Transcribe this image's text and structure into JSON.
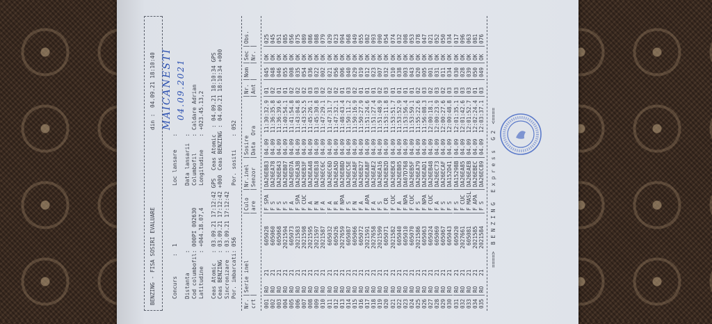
{
  "header": {
    "title": "BENZING - FISA SOSIRI EVALUARE",
    "din_label": "din :",
    "din_value": "04.09.21 18:10:40"
  },
  "info": {
    "concurs_label": "Concurs      :",
    "concurs_value": "1",
    "loc_label": "Loc lansare    :",
    "loc_value_handwritten": "MAICANESTI",
    "distanta_label": "Distanta      :",
    "data_lansarii_label": "Data lansarii  :",
    "data_lansarii_handwritten": "04.09.2021",
    "cod_label": "Cod columbofil:",
    "cod_value": "000PI 002630",
    "columbofil_label": "Columbofil     :",
    "columbofil_value": "Caldare Adrian",
    "latitudine_label": "Latitudine    :",
    "latitudine_value": "+044.18.07,4",
    "longitudine_label": "Longitudine    :",
    "longitudine_value": "+023.45.13,2",
    "ceas_atomic_label": "Ceas Atomic   :",
    "ceas_atomic_start": "03.09.21 17:12:42 GPS",
    "ceas_benzing_label": "Ceas BENZING  :",
    "ceas_benzing_start": "03.09.21 17:12:42 +000",
    "sincronizare_label": "Sincronizare  :",
    "sincronizare_value": "03.09.21 17:12:42",
    "imbarcati_label": "Por. imbarcati:",
    "imbarcati_value": "056",
    "ceas_atomic_end_label": "Ceas Atomic  :",
    "ceas_atomic_end": "04.09.21 18:10:34 GPS",
    "ceas_benzing_end_label": "Ceas BENZING :",
    "ceas_benzing_end": "04.09.21 18:10:34 +000",
    "sositi_label": "Por. sositi    :",
    "sositi_value": "052"
  },
  "table": {
    "headers_top": [
      "Nr.",
      "Serie inel",
      "Culo",
      "Nr.inel",
      "Sosire",
      "Nr.",
      "Nom",
      "Sec",
      "Obs."
    ],
    "headers_bottom": [
      "crt",
      "",
      "are",
      "Senzor",
      "Data  Ora",
      "Ant",
      "",
      "Nr.",
      ""
    ],
    "rows": [
      [
        "001",
        "RO",
        "21",
        "605028",
        "F",
        "SPA",
        "DA26EB83",
        "04.09",
        "11:30:32.9",
        "01",
        "045",
        "OK",
        "025"
      ],
      [
        "002",
        "RO",
        "21",
        "605060",
        "F",
        "S",
        "DA26EA78",
        "04.09",
        "11:36:35.8",
        "02",
        "048",
        "OK",
        "045"
      ],
      [
        "003",
        "RO",
        "21",
        "605068",
        "F",
        "S",
        "DA26EB43",
        "04.09",
        "11:36:39.6",
        "01",
        "046",
        "OK",
        "051"
      ],
      [
        "004",
        "RO",
        "21",
        "2021594",
        "F",
        "S",
        "DA26EB07",
        "04.09",
        "11:40:54.1",
        "01",
        "055",
        "OK",
        "085"
      ],
      [
        "005",
        "RO",
        "21",
        "605073",
        "F",
        "A",
        "DA26ED7A",
        "04.09",
        "11:41:54.8",
        "02",
        "008",
        "OK",
        "056"
      ],
      [
        "006",
        "RO",
        "21",
        "2021583",
        "F",
        "SPA",
        "DA26EA3B",
        "04.09",
        "11:43:04.8",
        "02",
        "035",
        "OK",
        "075"
      ],
      [
        "007",
        "RO",
        "21",
        "2021598",
        "F",
        "CUC",
        "DA26EB3F",
        "04.09",
        "11:43:52.5",
        "02",
        "054",
        "OK",
        "089"
      ],
      [
        "008",
        "RO",
        "21",
        "2021595",
        "F",
        "A",
        "DA26EA48",
        "04.09",
        "11:45:26.1",
        "03",
        "036",
        "OK",
        "086"
      ],
      [
        "009",
        "RO",
        "21",
        "2021597",
        "F",
        "N",
        "DA26EB18",
        "04.09",
        "11:45:30.8",
        "03",
        "022",
        "OK",
        "088"
      ],
      [
        "010",
        "RO",
        "21",
        "2021587",
        "F",
        "A",
        "DA26EC6C",
        "04.09",
        "11:47:29.1",
        "02",
        "002",
        "OK",
        "079"
      ],
      [
        "011",
        "RO",
        "21",
        "605032",
        "F",
        "A",
        "DA26EC6D",
        "04.09",
        "11:47:31.7",
        "02",
        "021",
        "OK",
        "029"
      ],
      [
        "012",
        "RO",
        "21",
        "605026",
        "F",
        "R",
        "DA26EA5D",
        "04.09",
        "11:47:32.1",
        "02",
        "056",
        "OK",
        "023"
      ],
      [
        "013",
        "RO",
        "21",
        "2027659",
        "F",
        "NPA",
        "DA26EB8D",
        "04.09",
        "11:48:43.4",
        "01",
        "006",
        "OK",
        "094"
      ],
      [
        "014",
        "RO",
        "21",
        "605087",
        "F",
        "S",
        "DA26EC5E",
        "04.09",
        "11:50:11.2",
        "03",
        "040",
        "OK",
        "068"
      ],
      [
        "015",
        "RO",
        "21",
        "605066",
        "F",
        "N",
        "DA26EA8F",
        "04.09",
        "11:50:16.9",
        "02",
        "029",
        "OK",
        "049"
      ],
      [
        "016",
        "RO",
        "21",
        "605072",
        "F",
        "A",
        "DA26EB27",
        "04.09",
        "11:50:27.9",
        "01",
        "019",
        "OK",
        "055"
      ],
      [
        "017",
        "RO",
        "21",
        "2021591",
        "F",
        "APA",
        "DA26EA8F",
        "04.09",
        "11:51:24.6",
        "01",
        "012",
        "OK",
        "082"
      ],
      [
        "018",
        "RO",
        "21",
        "2027658",
        "F",
        "A",
        "DA26EAE2",
        "04.09",
        "11:51:27.4",
        "01",
        "023",
        "OK",
        "093"
      ],
      [
        "019",
        "RO",
        "21",
        "2021599",
        "F",
        "S",
        "DA26EA16",
        "04.09",
        "11:51:48.9",
        "02",
        "007",
        "OK",
        "090"
      ],
      [
        "020",
        "RO",
        "21",
        "605071",
        "F",
        "CR",
        "DA26EB2D",
        "04.09",
        "11:53:11.8",
        "03",
        "032",
        "OK",
        "054"
      ],
      [
        "021",
        "RO",
        "21",
        "2021582",
        "F",
        "CUC",
        "DA26EBC8",
        "04.09",
        "11:53:51.7",
        "01",
        "010",
        "OK",
        "074"
      ],
      [
        "022",
        "RO",
        "21",
        "605040",
        "F",
        "A",
        "DA26EB05",
        "04.09",
        "11:53:52.9",
        "01",
        "038",
        "OK",
        "032"
      ],
      [
        "023",
        "RO",
        "21",
        "605010",
        "F",
        "NPA",
        "DA07D768",
        "04.09",
        "11:53:56.4",
        "01",
        "003",
        "OK",
        "008"
      ],
      [
        "024",
        "RO",
        "21",
        "605070",
        "F",
        "CUC",
        "DA26EB5F",
        "04.09",
        "11:53:59.1",
        "01",
        "043",
        "OK",
        "053"
      ],
      [
        "025",
        "RO",
        "21",
        "2021586",
        "F",
        "S",
        "DA26EA79",
        "04.09",
        "11:55:22.6",
        "02",
        "020",
        "OK",
        "078"
      ],
      [
        "026",
        "RO",
        "21",
        "605063",
        "F",
        "NPA",
        "DA26EAD1",
        "04.09",
        "11:56:08.3",
        "03",
        "005",
        "OK",
        "047"
      ],
      [
        "027",
        "RO",
        "21",
        "605024",
        "F",
        "CUC",
        "DA26EB48",
        "04.09",
        "12:00:18.1",
        "02",
        "001",
        "OK",
        "021"
      ],
      [
        "028",
        "RO",
        "21",
        "605069",
        "F",
        "A",
        "DA26EC73",
        "04.09",
        "12:00:23.9",
        "03",
        "031",
        "OK",
        "052"
      ],
      [
        "029",
        "RO",
        "21",
        "605067",
        "F",
        "S",
        "DA26ECAF",
        "04.09",
        "12:00:27.6",
        "02",
        "011",
        "OK",
        "050"
      ],
      [
        "030",
        "RO",
        "21",
        "605043",
        "F",
        "S",
        "DA152D41",
        "04.09",
        "12:00:48.8",
        "03",
        "034",
        "OK",
        "034"
      ],
      [
        "031",
        "RO",
        "21",
        "605020",
        "F",
        "S",
        "DA15298B",
        "04.09",
        "12:01:35.1",
        "03",
        "030",
        "OK",
        "017"
      ],
      [
        "032",
        "RO",
        "21",
        "2027661",
        "F",
        "CUC",
        "DA26EA85",
        "04.09",
        "12:01:42.6",
        "03",
        "028",
        "OK",
        "096"
      ],
      [
        "033",
        "RO",
        "21",
        "605081",
        "F",
        "MASL",
        "DA26EAEB",
        "04.09",
        "12:01:52.7",
        "03",
        "039",
        "OK",
        "063"
      ],
      [
        "034",
        "RO",
        "21",
        "2021585",
        "F",
        "APA",
        "DA26EBEC",
        "04.09",
        "12:02:24.4",
        "01",
        "050",
        "OK",
        "081"
      ],
      [
        "035",
        "RO",
        "21",
        "2021584",
        "F",
        "S",
        "DA26EC89",
        "04.09",
        "12:03:37.1",
        "03",
        "049",
        "OK",
        "076"
      ]
    ]
  },
  "footer": {
    "text": "====>  B E N Z I N G   E x p r e s s   G 2  <===="
  },
  "colors": {
    "paper": "#e3e6ec",
    "ink": "#3b3f4a",
    "handwriting": "#2a4fb0",
    "stamp": "#3a5fc0",
    "carpet": "#3a2a20"
  }
}
